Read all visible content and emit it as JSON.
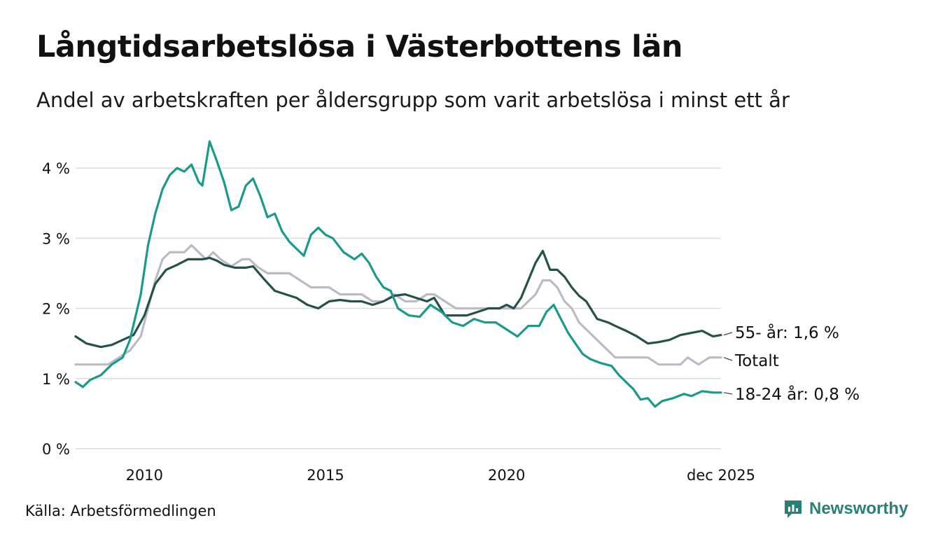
{
  "header": {
    "title": "Långtidsarbetslösa i Västerbottens län",
    "subtitle": "Andel av arbetskraften per åldersgrupp som varit arbetslösa i minst ett år"
  },
  "footer": {
    "source": "Källa: Arbetsförmedlingen",
    "brand": "Newsworthy"
  },
  "colors": {
    "age_18_24": "#1a9b8a",
    "age_55": "#24524a",
    "total": "#bdbac7",
    "grid": "#dcdcdc",
    "brand": "#2a8074"
  },
  "chart_data": {
    "type": "line",
    "title": "Långtidsarbetslösa i Västerbottens län",
    "ylim": [
      0,
      4.4
    ],
    "xlim": [
      2008.1,
      2025.92
    ],
    "y_ticks": [
      {
        "value": 0,
        "label": "0 %"
      },
      {
        "value": 1,
        "label": "1 %"
      },
      {
        "value": 2,
        "label": "2 %"
      },
      {
        "value": 3,
        "label": "3 %"
      },
      {
        "value": 4,
        "label": "4 %"
      }
    ],
    "x_ticks": [
      {
        "value": 2010,
        "label": "2010"
      },
      {
        "value": 2015,
        "label": "2015"
      },
      {
        "value": 2020,
        "label": "2020"
      },
      {
        "value": 2025.92,
        "label": "dec 2025"
      }
    ],
    "grid": true,
    "series": [
      {
        "name": "Totalt",
        "label": "Totalt",
        "color_key": "total",
        "x": [
          2008.1,
          2008.5,
          2009.0,
          2009.3,
          2009.6,
          2009.9,
          2010.1,
          2010.3,
          2010.5,
          2010.7,
          2010.9,
          2011.1,
          2011.3,
          2011.5,
          2011.7,
          2011.9,
          2012.1,
          2012.4,
          2012.7,
          2012.9,
          2013.1,
          2013.4,
          2013.7,
          2014.0,
          2014.3,
          2014.6,
          2014.9,
          2015.1,
          2015.4,
          2015.7,
          2016.0,
          2016.3,
          2016.6,
          2016.9,
          2017.2,
          2017.5,
          2017.8,
          2018.0,
          2018.3,
          2018.6,
          2018.9,
          2019.2,
          2019.5,
          2019.8,
          2020.0,
          2020.2,
          2020.4,
          2020.6,
          2020.8,
          2021.0,
          2021.2,
          2021.4,
          2021.6,
          2021.8,
          2022.0,
          2022.2,
          2022.4,
          2022.6,
          2022.8,
          2023.0,
          2023.3,
          2023.6,
          2023.9,
          2024.2,
          2024.5,
          2024.8,
          2025.0,
          2025.3,
          2025.6,
          2025.92
        ],
        "values": [
          1.2,
          1.2,
          1.2,
          1.3,
          1.4,
          1.6,
          2.0,
          2.4,
          2.7,
          2.8,
          2.8,
          2.8,
          2.9,
          2.8,
          2.7,
          2.8,
          2.7,
          2.6,
          2.7,
          2.7,
          2.6,
          2.5,
          2.5,
          2.5,
          2.4,
          2.3,
          2.3,
          2.3,
          2.2,
          2.2,
          2.2,
          2.1,
          2.1,
          2.2,
          2.1,
          2.1,
          2.2,
          2.2,
          2.1,
          2.0,
          2.0,
          2.0,
          2.0,
          2.0,
          2.0,
          2.0,
          2.0,
          2.1,
          2.2,
          2.4,
          2.4,
          2.3,
          2.1,
          2.0,
          1.8,
          1.7,
          1.6,
          1.5,
          1.4,
          1.3,
          1.3,
          1.3,
          1.3,
          1.2,
          1.2,
          1.2,
          1.3,
          1.2,
          1.3,
          1.3
        ],
        "end_label": "Totalt"
      },
      {
        "name": "55- år",
        "label": "55- år: 1,6 %",
        "color_key": "age_55",
        "x": [
          2008.1,
          2008.4,
          2008.8,
          2009.1,
          2009.4,
          2009.7,
          2010.0,
          2010.3,
          2010.6,
          2010.9,
          2011.2,
          2011.4,
          2011.6,
          2011.8,
          2012.0,
          2012.2,
          2012.5,
          2012.8,
          2013.0,
          2013.3,
          2013.6,
          2013.9,
          2014.2,
          2014.5,
          2014.8,
          2015.1,
          2015.4,
          2015.7,
          2016.0,
          2016.3,
          2016.6,
          2016.9,
          2017.2,
          2017.5,
          2017.8,
          2018.0,
          2018.3,
          2018.6,
          2018.9,
          2019.2,
          2019.5,
          2019.8,
          2020.0,
          2020.2,
          2020.4,
          2020.6,
          2020.8,
          2021.0,
          2021.2,
          2021.4,
          2021.6,
          2021.8,
          2022.0,
          2022.2,
          2022.5,
          2022.8,
          2023.0,
          2023.3,
          2023.6,
          2023.9,
          2024.2,
          2024.5,
          2024.8,
          2025.1,
          2025.4,
          2025.7,
          2025.92
        ],
        "values": [
          1.6,
          1.5,
          1.45,
          1.48,
          1.55,
          1.62,
          1.9,
          2.35,
          2.55,
          2.62,
          2.7,
          2.7,
          2.7,
          2.72,
          2.68,
          2.62,
          2.58,
          2.58,
          2.6,
          2.42,
          2.25,
          2.2,
          2.15,
          2.05,
          2.0,
          2.1,
          2.12,
          2.1,
          2.1,
          2.05,
          2.1,
          2.18,
          2.2,
          2.15,
          2.1,
          2.15,
          1.9,
          1.9,
          1.9,
          1.95,
          2.0,
          2.0,
          2.05,
          2.0,
          2.15,
          2.4,
          2.65,
          2.82,
          2.55,
          2.55,
          2.45,
          2.3,
          2.18,
          2.1,
          1.85,
          1.8,
          1.75,
          1.68,
          1.6,
          1.5,
          1.52,
          1.55,
          1.62,
          1.65,
          1.68,
          1.6,
          1.62
        ],
        "end_label": "55- år: 1,6 %"
      },
      {
        "name": "18-24 år",
        "label": "18-24 år: 0,8 %",
        "color_key": "age_18_24",
        "x": [
          2008.1,
          2008.3,
          2008.5,
          2008.8,
          2009.1,
          2009.4,
          2009.6,
          2009.9,
          2010.1,
          2010.3,
          2010.5,
          2010.7,
          2010.9,
          2011.1,
          2011.3,
          2011.5,
          2011.6,
          2011.8,
          2012.0,
          2012.2,
          2012.4,
          2012.6,
          2012.8,
          2013.0,
          2013.2,
          2013.4,
          2013.6,
          2013.8,
          2014.0,
          2014.2,
          2014.4,
          2014.6,
          2014.8,
          2015.0,
          2015.2,
          2015.5,
          2015.8,
          2016.0,
          2016.2,
          2016.4,
          2016.6,
          2016.8,
          2017.0,
          2017.3,
          2017.6,
          2017.9,
          2018.2,
          2018.5,
          2018.8,
          2019.1,
          2019.4,
          2019.7,
          2020.0,
          2020.3,
          2020.6,
          2020.9,
          2021.1,
          2021.3,
          2021.5,
          2021.7,
          2021.9,
          2022.1,
          2022.3,
          2022.6,
          2022.9,
          2023.1,
          2023.3,
          2023.5,
          2023.7,
          2023.9,
          2024.1,
          2024.3,
          2024.6,
          2024.9,
          2025.1,
          2025.4,
          2025.7,
          2025.92
        ],
        "values": [
          0.95,
          0.88,
          0.98,
          1.05,
          1.2,
          1.3,
          1.55,
          2.2,
          2.9,
          3.35,
          3.7,
          3.9,
          4.0,
          3.95,
          4.05,
          3.8,
          3.75,
          4.38,
          4.1,
          3.8,
          3.4,
          3.45,
          3.75,
          3.85,
          3.6,
          3.3,
          3.35,
          3.1,
          2.95,
          2.85,
          2.75,
          3.05,
          3.15,
          3.05,
          3.0,
          2.8,
          2.7,
          2.78,
          2.65,
          2.45,
          2.3,
          2.25,
          2.0,
          1.9,
          1.88,
          2.05,
          1.95,
          1.8,
          1.75,
          1.85,
          1.8,
          1.8,
          1.7,
          1.6,
          1.75,
          1.75,
          1.95,
          2.05,
          1.85,
          1.65,
          1.5,
          1.35,
          1.28,
          1.22,
          1.18,
          1.05,
          0.95,
          0.85,
          0.7,
          0.72,
          0.6,
          0.68,
          0.72,
          0.78,
          0.75,
          0.82,
          0.8,
          0.8
        ],
        "end_label": "18-24 år: 0,8 %"
      }
    ]
  }
}
